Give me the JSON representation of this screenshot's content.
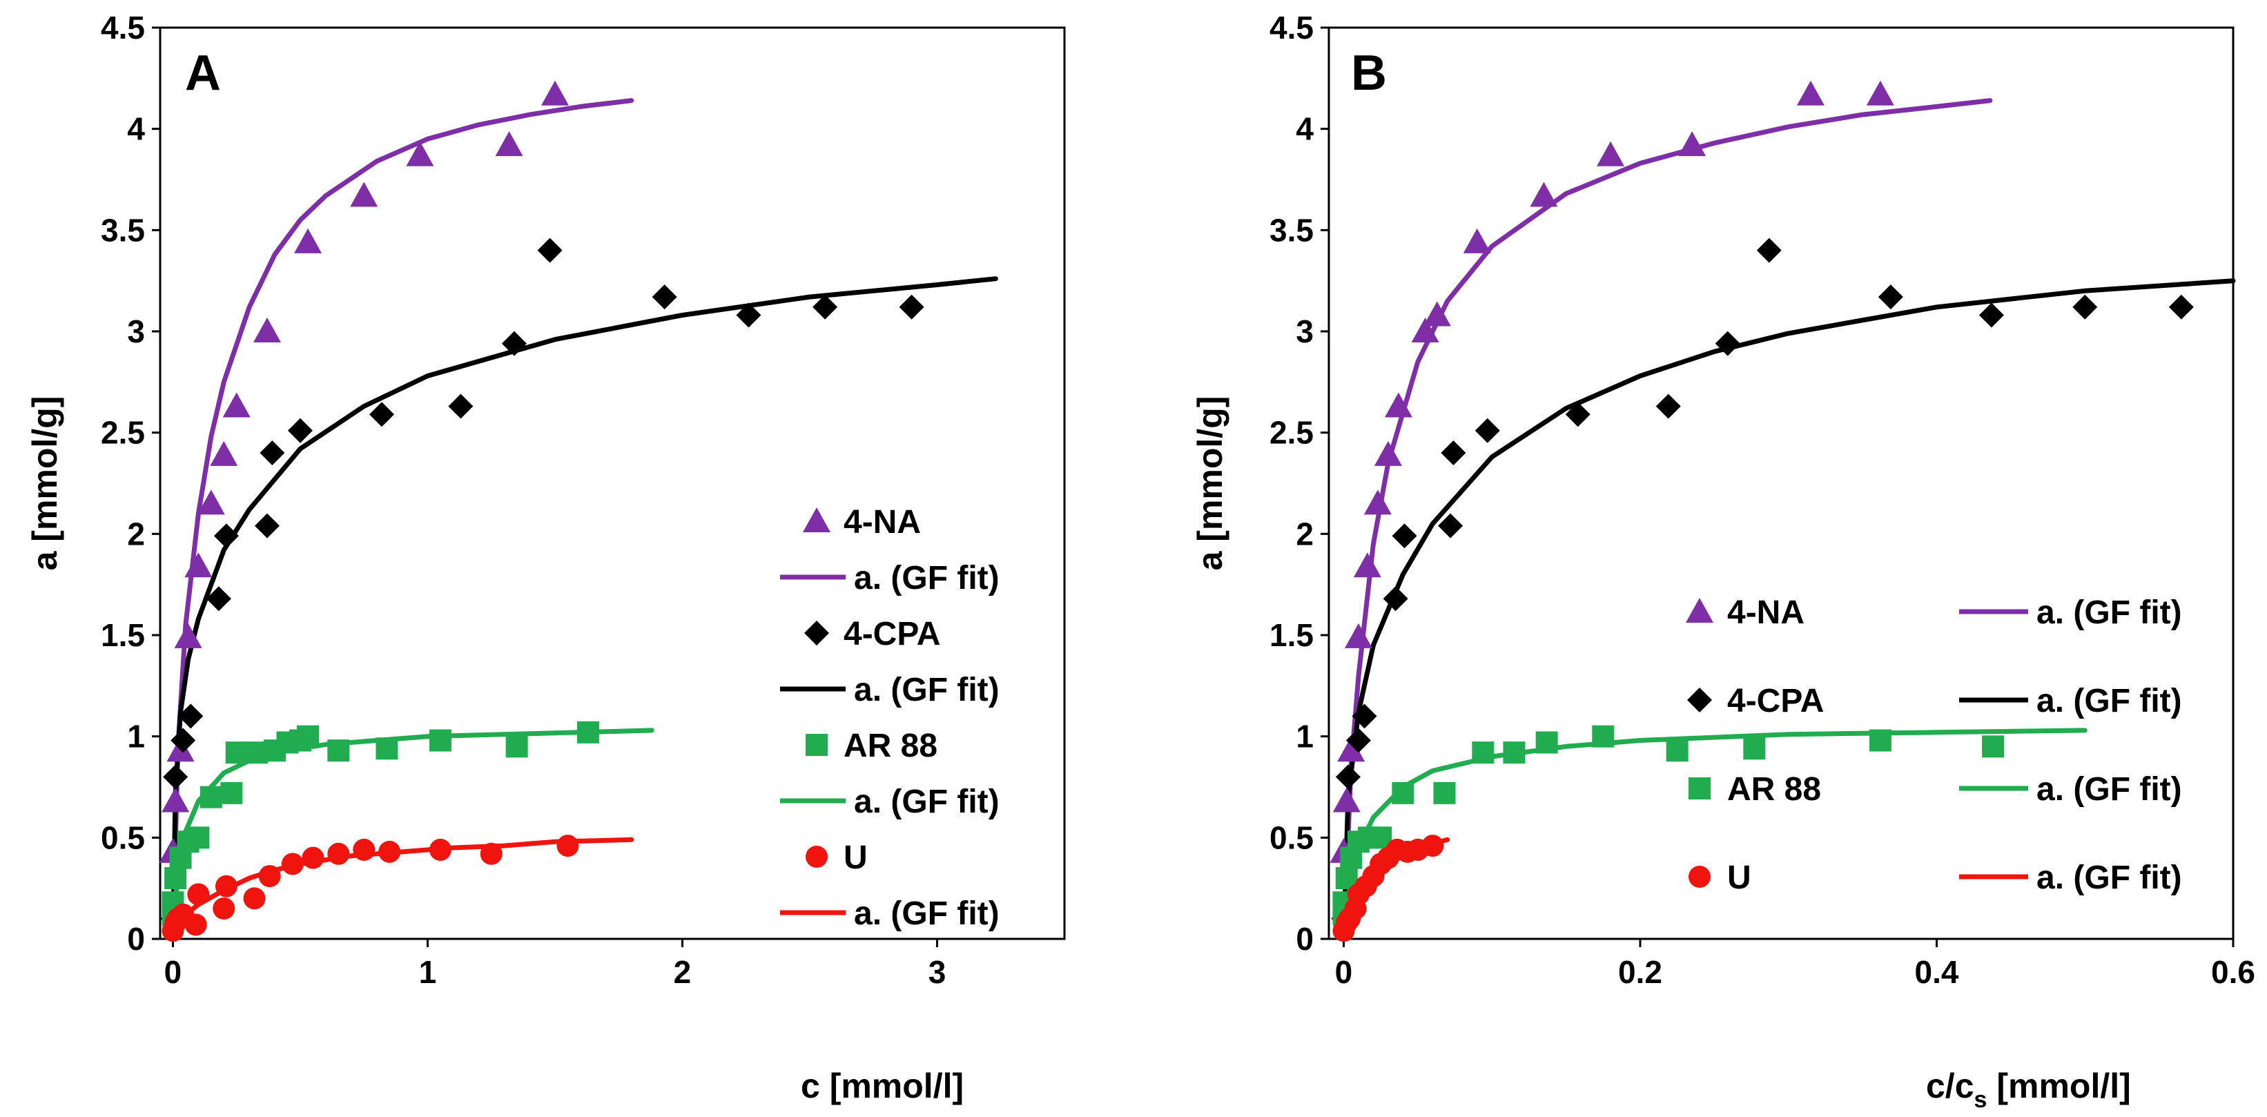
{
  "colors": {
    "4-NA": "#7e2fa8",
    "4-CPA": "#000000",
    "AR 88": "#21ad4f",
    "U": "#f0140f"
  },
  "chart_data": [
    {
      "type": "scatter",
      "panel_label": "A",
      "xlabel": "c [mmol/l]",
      "ylabel": "a [mmol/g]",
      "xlim": [
        -0.05,
        3.5
      ],
      "ylim": [
        0,
        4.5
      ],
      "x_ticks": [
        0,
        1,
        2,
        3
      ],
      "x_tick_labels": [
        "0",
        "1",
        "2",
        "3"
      ],
      "y_ticks": [
        0,
        0.5,
        1,
        1.5,
        2,
        2.5,
        3,
        3.5,
        4,
        4.5
      ],
      "y_tick_labels": [
        "0",
        "0.5",
        "1",
        "1.5",
        "2",
        "2.5",
        "3",
        "3.5",
        "4",
        "4.5"
      ],
      "legend_position": "lower-right",
      "legend_layout": "single-column",
      "series": [
        {
          "name": "4-NA",
          "marker": "triangle",
          "fit_label": "a. (GF fit)",
          "x": [
            0.0,
            0.01,
            0.03,
            0.06,
            0.1,
            0.15,
            0.2,
            0.25,
            0.37,
            0.53,
            0.75,
            0.97,
            1.32,
            1.5
          ],
          "y": [
            0.43,
            0.68,
            0.93,
            1.49,
            1.84,
            2.15,
            2.39,
            2.63,
            3.0,
            3.44,
            3.67,
            3.87,
            3.92,
            4.17
          ],
          "fit_x": [
            0.0,
            0.02,
            0.05,
            0.1,
            0.15,
            0.2,
            0.3,
            0.4,
            0.5,
            0.6,
            0.8,
            1.0,
            1.2,
            1.4,
            1.6,
            1.8
          ],
          "fit_y": [
            0.0,
            0.95,
            1.55,
            2.1,
            2.48,
            2.75,
            3.12,
            3.38,
            3.55,
            3.67,
            3.84,
            3.95,
            4.02,
            4.07,
            4.11,
            4.14
          ]
        },
        {
          "name": "4-CPA",
          "marker": "diamond",
          "fit_label": "a. (GF fit)",
          "x": [
            0.0,
            0.01,
            0.04,
            0.07,
            0.18,
            0.21,
            0.37,
            0.39,
            0.5,
            0.82,
            1.13,
            1.34,
            1.48,
            1.93,
            2.26,
            2.56,
            2.9
          ],
          "y": [
            0.1,
            0.8,
            0.98,
            1.1,
            1.68,
            1.99,
            2.04,
            2.4,
            2.51,
            2.59,
            2.63,
            2.94,
            3.4,
            3.17,
            3.08,
            3.12,
            3.12
          ],
          "fit_x": [
            0.0,
            0.01,
            0.03,
            0.06,
            0.1,
            0.2,
            0.3,
            0.5,
            0.75,
            1.0,
            1.5,
            2.0,
            2.5,
            3.0,
            3.23
          ],
          "fit_y": [
            0.0,
            0.72,
            1.12,
            1.38,
            1.58,
            1.92,
            2.12,
            2.42,
            2.63,
            2.78,
            2.96,
            3.08,
            3.17,
            3.23,
            3.26
          ]
        },
        {
          "name": "AR 88",
          "marker": "square",
          "fit_label": "a. (GF fit)",
          "x": [
            0.0,
            0.0,
            0.01,
            0.03,
            0.06,
            0.1,
            0.15,
            0.23,
            0.25,
            0.33,
            0.4,
            0.45,
            0.5,
            0.53,
            0.65,
            0.84,
            1.05,
            1.35,
            1.63
          ],
          "y": [
            0.12,
            0.18,
            0.3,
            0.4,
            0.48,
            0.5,
            0.7,
            0.72,
            0.92,
            0.92,
            0.93,
            0.97,
            0.98,
            1.0,
            0.93,
            0.94,
            0.98,
            0.95,
            1.02
          ],
          "fit_x": [
            0.0,
            0.02,
            0.05,
            0.1,
            0.2,
            0.3,
            0.4,
            0.6,
            0.8,
            1.0,
            1.3,
            1.6,
            1.88
          ],
          "fit_y": [
            0.0,
            0.35,
            0.53,
            0.68,
            0.82,
            0.88,
            0.92,
            0.96,
            0.98,
            1.0,
            1.01,
            1.02,
            1.03
          ]
        },
        {
          "name": "U",
          "marker": "circle",
          "fit_label": "a. (GF fit)",
          "x": [
            0.0,
            0.01,
            0.02,
            0.04,
            0.09,
            0.1,
            0.2,
            0.21,
            0.32,
            0.38,
            0.47,
            0.55,
            0.65,
            0.75,
            0.85,
            1.05,
            1.25,
            1.55
          ],
          "y": [
            0.04,
            0.08,
            0.1,
            0.12,
            0.07,
            0.22,
            0.15,
            0.26,
            0.2,
            0.31,
            0.37,
            0.4,
            0.42,
            0.44,
            0.43,
            0.44,
            0.42,
            0.46
          ],
          "fit_x": [
            0.0,
            0.05,
            0.1,
            0.2,
            0.3,
            0.4,
            0.5,
            0.7,
            0.9,
            1.1,
            1.3,
            1.5,
            1.8
          ],
          "fit_y": [
            0.0,
            0.12,
            0.17,
            0.24,
            0.3,
            0.34,
            0.37,
            0.41,
            0.43,
            0.45,
            0.46,
            0.48,
            0.49
          ]
        }
      ]
    },
    {
      "type": "scatter",
      "panel_label": "B",
      "xlabel": "c/c",
      "xlabel_subscript": "s",
      "xlabel_suffix": " [mmol/l]",
      "ylabel": "a [mmol/g]",
      "xlim": [
        -0.01,
        0.6
      ],
      "ylim": [
        0,
        4.5
      ],
      "x_ticks": [
        0,
        0.2,
        0.4,
        0.6
      ],
      "x_tick_labels": [
        "0",
        "0.2",
        "0.4",
        "0.6"
      ],
      "y_ticks": [
        0,
        0.5,
        1,
        1.5,
        2,
        2.5,
        3,
        3.5,
        4,
        4.5
      ],
      "y_tick_labels": [
        "0",
        "0.5",
        "1",
        "1.5",
        "2",
        "2.5",
        "3",
        "3.5",
        "4",
        "4.5"
      ],
      "legend_position": "lower-right",
      "legend_layout": "two-column",
      "series": [
        {
          "name": "4-NA",
          "marker": "triangle",
          "fit_label": "a. (GF fit)",
          "x": [
            0.0,
            0.002,
            0.005,
            0.01,
            0.016,
            0.023,
            0.03,
            0.037,
            0.055,
            0.063,
            0.09,
            0.135,
            0.18,
            0.235,
            0.315,
            0.362
          ],
          "y": [
            0.43,
            0.68,
            0.93,
            1.49,
            1.84,
            2.15,
            2.39,
            2.63,
            3.0,
            3.08,
            3.44,
            3.67,
            3.87,
            3.92,
            4.17,
            4.17
          ],
          "fit_x": [
            0.0,
            0.005,
            0.01,
            0.02,
            0.03,
            0.05,
            0.07,
            0.1,
            0.15,
            0.2,
            0.25,
            0.3,
            0.35,
            0.4,
            0.436
          ],
          "fit_y": [
            0.0,
            0.85,
            1.3,
            1.95,
            2.35,
            2.85,
            3.15,
            3.42,
            3.68,
            3.83,
            3.93,
            4.01,
            4.07,
            4.11,
            4.14
          ]
        },
        {
          "name": "4-CPA",
          "marker": "diamond",
          "fit_label": "a. (GF fit)",
          "x": [
            0.0,
            0.003,
            0.01,
            0.014,
            0.035,
            0.041,
            0.072,
            0.074,
            0.097,
            0.158,
            0.219,
            0.259,
            0.287,
            0.369,
            0.437,
            0.5,
            0.565
          ],
          "y": [
            0.1,
            0.8,
            0.98,
            1.1,
            1.68,
            1.99,
            2.04,
            2.4,
            2.51,
            2.59,
            2.63,
            2.94,
            3.4,
            3.17,
            3.08,
            3.12,
            3.12
          ],
          "fit_x": [
            0.0,
            0.003,
            0.01,
            0.02,
            0.04,
            0.06,
            0.1,
            0.15,
            0.2,
            0.25,
            0.3,
            0.4,
            0.5,
            0.6
          ],
          "fit_y": [
            0.0,
            0.7,
            1.12,
            1.45,
            1.8,
            2.05,
            2.38,
            2.62,
            2.78,
            2.9,
            2.99,
            3.12,
            3.2,
            3.25
          ]
        },
        {
          "name": "AR 88",
          "marker": "square",
          "fit_label": "a. (GF fit)",
          "x": [
            0.0,
            0.0,
            0.002,
            0.005,
            0.01,
            0.017,
            0.025,
            0.04,
            0.068,
            0.094,
            0.115,
            0.137,
            0.175,
            0.225,
            0.277,
            0.362,
            0.438
          ],
          "y": [
            0.12,
            0.18,
            0.3,
            0.4,
            0.48,
            0.5,
            0.5,
            0.72,
            0.72,
            0.92,
            0.92,
            0.97,
            1.0,
            0.93,
            0.94,
            0.98,
            0.95
          ],
          "fit_x": [
            0.0,
            0.005,
            0.01,
            0.02,
            0.04,
            0.06,
            0.1,
            0.15,
            0.2,
            0.3,
            0.4,
            0.5
          ],
          "fit_y": [
            0.0,
            0.3,
            0.45,
            0.6,
            0.75,
            0.83,
            0.9,
            0.95,
            0.98,
            1.01,
            1.02,
            1.03
          ]
        },
        {
          "name": "U",
          "marker": "circle",
          "fit_label": "a. (GF fit)",
          "x": [
            0.0,
            0.002,
            0.004,
            0.008,
            0.01,
            0.015,
            0.02,
            0.025,
            0.03,
            0.036,
            0.043,
            0.05,
            0.06
          ],
          "y": [
            0.04,
            0.08,
            0.1,
            0.15,
            0.22,
            0.26,
            0.31,
            0.37,
            0.4,
            0.44,
            0.43,
            0.44,
            0.46
          ],
          "fit_x": [
            0.0,
            0.005,
            0.01,
            0.02,
            0.03,
            0.04,
            0.05,
            0.06,
            0.07
          ],
          "fit_y": [
            0.0,
            0.14,
            0.22,
            0.31,
            0.37,
            0.41,
            0.44,
            0.47,
            0.49
          ]
        }
      ]
    }
  ]
}
